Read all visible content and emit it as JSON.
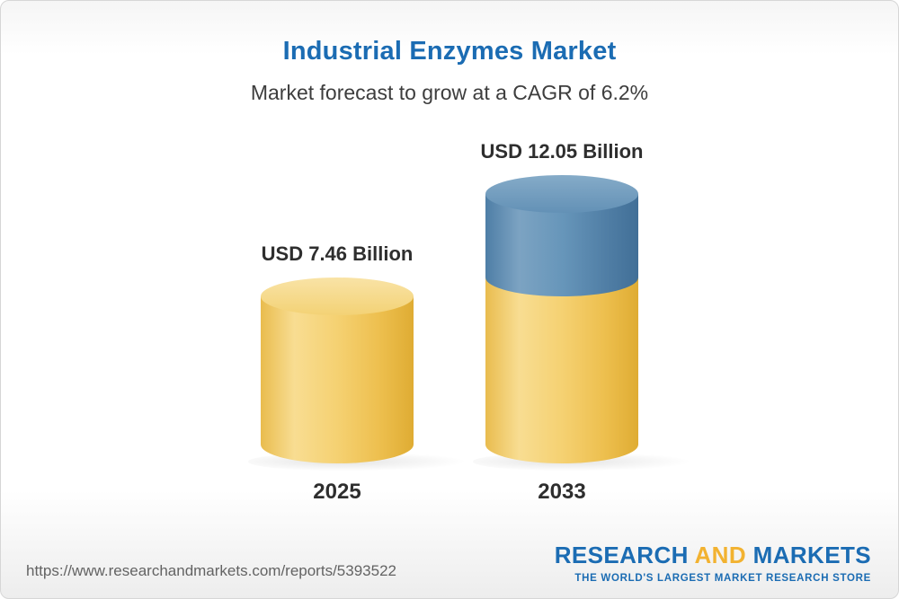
{
  "header": {
    "title": "Industrial Enzymes Market",
    "subtitle": "Market forecast to grow at a CAGR of 6.2%"
  },
  "chart_data": {
    "type": "bar",
    "subtype": "3d-cylinder",
    "title": "Industrial Enzymes Market",
    "subtitle": "Market forecast to grow at a CAGR of 6.2%",
    "categories": [
      "2025",
      "2033"
    ],
    "values": [
      7.46,
      12.05
    ],
    "value_labels": [
      "USD 7.46 Billion",
      "USD 12.05 Billion"
    ],
    "unit": "USD Billion",
    "cagr_percent": 6.2,
    "ylim": [
      0,
      12.05
    ],
    "legend": false,
    "colors": {
      "base_segment": "#F0C75E",
      "growth_segment": "#5C8DB5",
      "title": "#1B6CB3",
      "text": "#2E2E2E"
    }
  },
  "footer": {
    "url": "https://www.researchandmarkets.com/reports/5393522",
    "logo": {
      "word1": "RESEARCH",
      "word2": "AND",
      "word3": "MARKETS",
      "tagline": "THE WORLD'S LARGEST MARKET RESEARCH STORE"
    }
  }
}
